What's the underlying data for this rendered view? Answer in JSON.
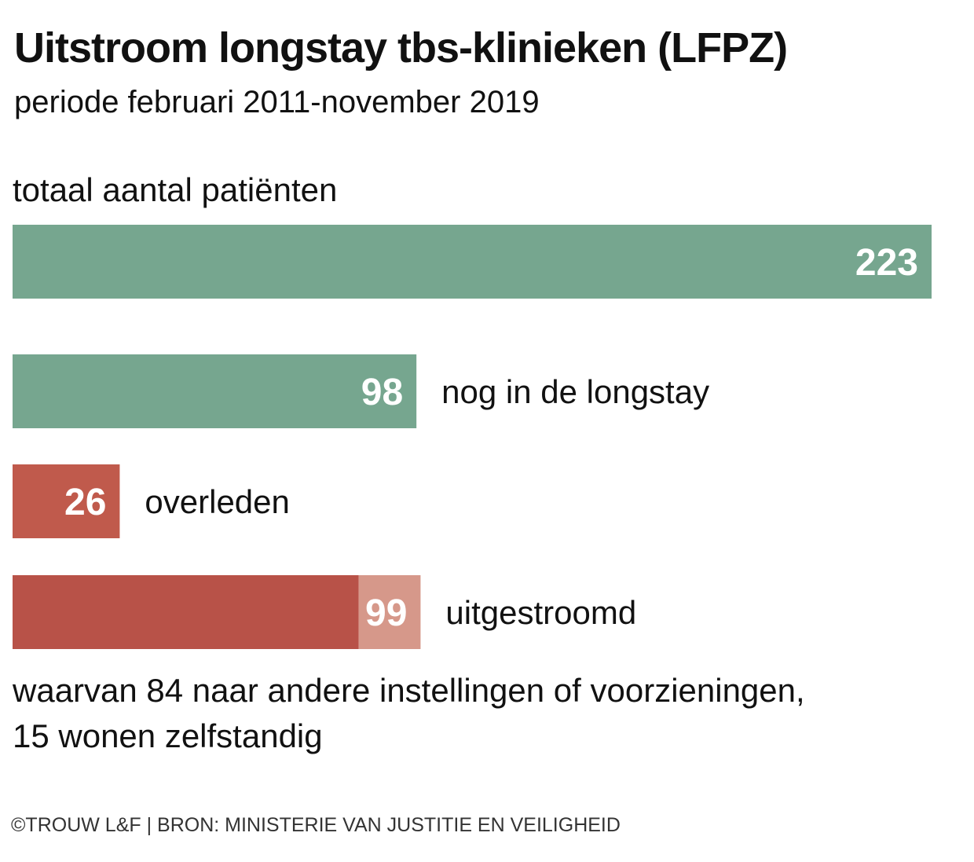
{
  "header": {
    "title": "Uitstroom  longstay tbs-klinieken (LFPZ)",
    "subtitle": "periode februari 2011-november 2019"
  },
  "chart_data": {
    "type": "bar",
    "orientation": "horizontal",
    "title": "Uitstroom  longstay tbs-klinieken (LFPZ)",
    "subtitle": "periode februari 2011-november 2019",
    "section_label": "totaal aantal patiënten",
    "bars": [
      {
        "label": "",
        "value": 223,
        "color": "#76a68f"
      },
      {
        "label": "nog in de longstay",
        "value": 98,
        "color": "#76a68f"
      },
      {
        "label": "overleden",
        "value": 26,
        "color": "#c05a4c"
      },
      {
        "label": "uitgestroomd",
        "value": 99,
        "color": "#b85248",
        "segments": [
          {
            "value": 84,
            "color": "#b85248"
          },
          {
            "value": 15,
            "color": "#d6988a"
          }
        ]
      }
    ],
    "xlim": [
      0,
      223
    ],
    "grid": false,
    "legend": "none",
    "note_lines": [
      "waarvan 84 naar andere instellingen of voorzieningen,",
      "15 wonen zelfstandig"
    ]
  },
  "footer": {
    "source": "©TROUW L&F | BRON: MINISTERIE VAN JUSTITIE EN VEILIGHEID"
  }
}
